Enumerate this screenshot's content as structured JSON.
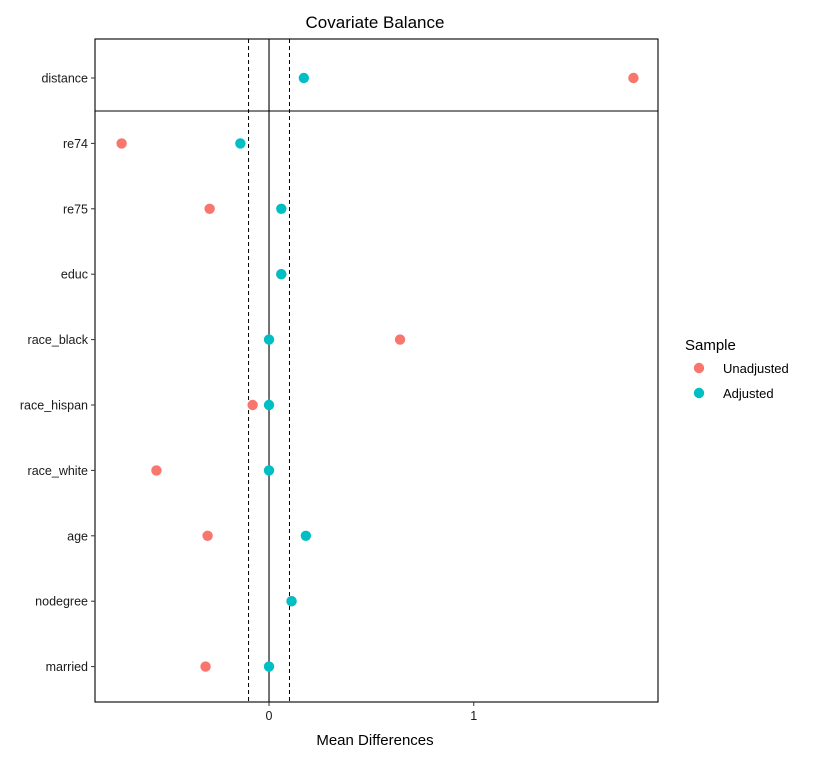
{
  "chart_data": {
    "type": "scatter",
    "title": "Covariate Balance",
    "xlabel": "Mean Differences",
    "ylabel": "",
    "xlim": [
      -0.85,
      1.9
    ],
    "x_ticks": [
      0,
      1
    ],
    "x_tick_labels": [
      "0",
      "1"
    ],
    "threshold_lines": [
      -0.1,
      0.1
    ],
    "zero_line": 0,
    "grid": false,
    "legend_position": "right",
    "legend_title": "Sample",
    "categories": [
      "distance",
      "re74",
      "re75",
      "educ",
      "race_black",
      "race_hispan",
      "race_white",
      "age",
      "nodegree",
      "married"
    ],
    "series": [
      {
        "name": "Unadjusted",
        "color": "#F8766D",
        "values": [
          1.78,
          -0.72,
          -0.29,
          0.06,
          0.64,
          -0.08,
          -0.55,
          -0.3,
          0.11,
          -0.31
        ]
      },
      {
        "name": "Adjusted",
        "color": "#00BFC4",
        "values": [
          0.17,
          -0.14,
          0.06,
          0.06,
          0.0,
          0.0,
          0.0,
          0.18,
          0.11,
          0.0
        ]
      }
    ]
  }
}
